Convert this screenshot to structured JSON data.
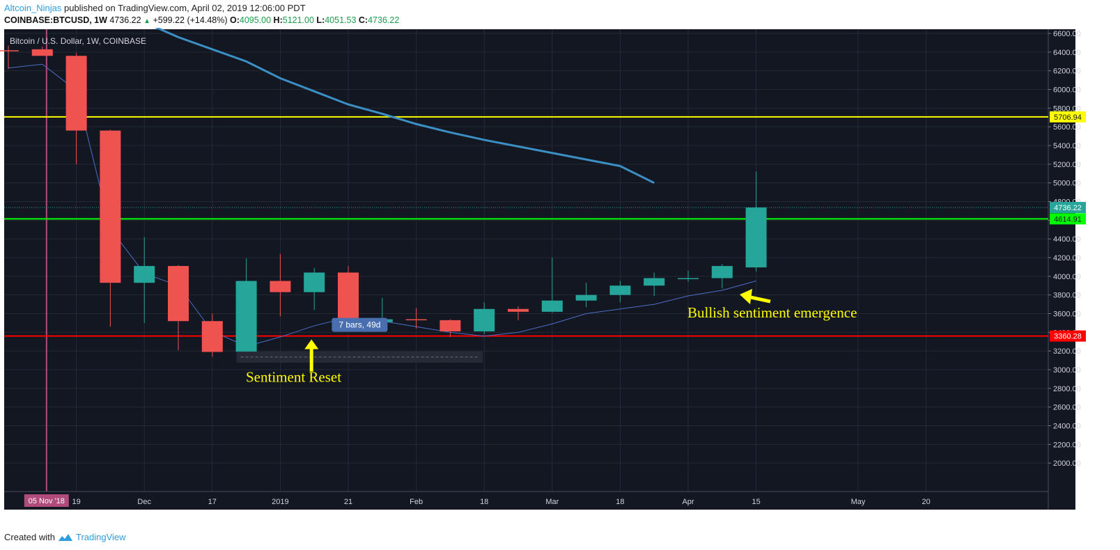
{
  "header": {
    "author": "Altcoin_Ninjas",
    "published_text": " published on TradingView.com, April 02, 2019 12:06:00 PDT",
    "symbol_line": "COINBASE:BTCUSD, 1W",
    "last_price": "4736.22",
    "change_arrow": "▲",
    "change": "+599.22 (+14.48%)",
    "o_label": "O:",
    "o_value": "4095.00",
    "h_label": "H:",
    "h_value": "5121.00",
    "l_label": "L:",
    "l_value": "4051.53",
    "c_label": "C:",
    "c_value": "4736.22"
  },
  "chart_data": {
    "type": "candlestick",
    "title": "Bitcoin / U.S. Dollar, 1W, COINBASE",
    "ylim": [
      1800,
      6600
    ],
    "y_ticks": [
      "6600.00",
      "6400.00",
      "6200.00",
      "6000.00",
      "5800.00",
      "5600.00",
      "5400.00",
      "5200.00",
      "5000.00",
      "4800.00",
      "4600.00",
      "4400.00",
      "4200.00",
      "4000.00",
      "3800.00",
      "3600.00",
      "3400.00",
      "3200.00",
      "3000.00",
      "2800.00",
      "2600.00",
      "2400.00",
      "2200.00",
      "2000.00"
    ],
    "x_ticks": [
      {
        "label": "19",
        "i": 2
      },
      {
        "label": "Dec",
        "i": 4
      },
      {
        "label": "17",
        "i": 6
      },
      {
        "label": "2019",
        "i": 8
      },
      {
        "label": "21",
        "i": 10
      },
      {
        "label": "Feb",
        "i": 12
      },
      {
        "label": "18",
        "i": 14
      },
      {
        "label": "Mar",
        "i": 16
      },
      {
        "label": "18",
        "i": 18
      },
      {
        "label": "Apr",
        "i": 20
      },
      {
        "label": "15",
        "i": 22
      },
      {
        "label": "May",
        "i": 25
      },
      {
        "label": "20",
        "i": 27
      }
    ],
    "highlight_date": "05 Nov '18",
    "candles": [
      {
        "o": 6420,
        "h": 6470,
        "l": 6220,
        "c": 6410
      },
      {
        "o": 6430,
        "h": 6460,
        "l": 6380,
        "c": 6360
      },
      {
        "o": 6360,
        "h": 6390,
        "l": 5200,
        "c": 5560
      },
      {
        "o": 5560,
        "h": 5570,
        "l": 3460,
        "c": 3930
      },
      {
        "o": 3930,
        "h": 4420,
        "l": 3500,
        "c": 4110
      },
      {
        "o": 4110,
        "h": 4120,
        "l": 3210,
        "c": 3520
      },
      {
        "o": 3520,
        "h": 3600,
        "l": 3140,
        "c": 3190
      },
      {
        "o": 3190,
        "h": 4190,
        "l": 3180,
        "c": 3950
      },
      {
        "o": 3950,
        "h": 4240,
        "l": 3570,
        "c": 3830
      },
      {
        "o": 3830,
        "h": 4090,
        "l": 3640,
        "c": 4040
      },
      {
        "o": 4040,
        "h": 4110,
        "l": 3520,
        "c": 3510
      },
      {
        "o": 3510,
        "h": 3770,
        "l": 3470,
        "c": 3540
      },
      {
        "o": 3540,
        "h": 3660,
        "l": 3440,
        "c": 3530
      },
      {
        "o": 3530,
        "h": 3540,
        "l": 3350,
        "c": 3410
      },
      {
        "o": 3410,
        "h": 3720,
        "l": 3380,
        "c": 3650
      },
      {
        "o": 3650,
        "h": 3680,
        "l": 3530,
        "c": 3620
      },
      {
        "o": 3620,
        "h": 4200,
        "l": 3610,
        "c": 3740
      },
      {
        "o": 3740,
        "h": 3930,
        "l": 3670,
        "c": 3800
      },
      {
        "o": 3800,
        "h": 3950,
        "l": 3720,
        "c": 3900
      },
      {
        "o": 3900,
        "h": 4040,
        "l": 3790,
        "c": 3980
      },
      {
        "o": 3970,
        "h": 4060,
        "l": 3940,
        "c": 3980
      },
      {
        "o": 3980,
        "h": 4130,
        "l": 3870,
        "c": 4110
      },
      {
        "o": 4095,
        "h": 5121,
        "l": 4051.53,
        "c": 4736.22
      }
    ],
    "ma_slow": {
      "start_index": 0,
      "values": [
        7180,
        7090,
        6990,
        6850,
        6720,
        6560,
        6430,
        6300,
        6120,
        5980,
        5840,
        5740,
        5630,
        5540,
        5460,
        5390,
        5320,
        5250,
        5180,
        5000
      ]
    },
    "ma_fast": [
      6230,
      6270,
      5990,
      4510,
      4030,
      3900,
      3410,
      3250,
      3350,
      3470,
      3560,
      3520,
      3460,
      3400,
      3360,
      3400,
      3490,
      3600,
      3650,
      3700,
      3790,
      3850,
      3950
    ],
    "hlines": [
      {
        "value": 5706.94,
        "label": "5706.94",
        "color": "#ffff00"
      },
      {
        "value": 4614.91,
        "label": "4614.91",
        "color": "#00ff00"
      },
      {
        "value": 3360.28,
        "label": "3360.28",
        "color": "#ff0000"
      }
    ],
    "last_price_label": "4736.22",
    "annotations": [
      {
        "text": "Sentiment Reset"
      },
      {
        "text": "Bullish sentiment emergence"
      }
    ],
    "measure_label": "7 bars, 49d",
    "colors": {
      "background": "#131722",
      "up": "#26a69a",
      "down": "#ef5350",
      "ma_slow": "#3b8fc4",
      "ma_fast": "#4d6fc8",
      "annotation": "#ffff00",
      "highlight": "#b04b7c"
    }
  },
  "footer": {
    "created_with": "Created with",
    "brand": "TradingView"
  }
}
